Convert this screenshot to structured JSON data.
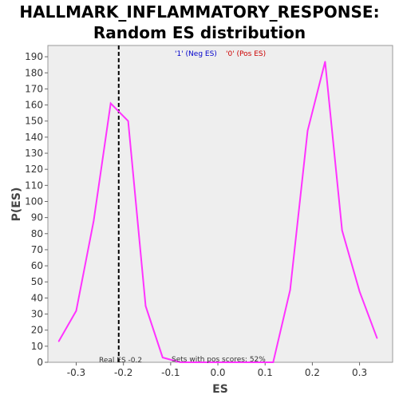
{
  "chart_data": {
    "type": "line",
    "title_line1": "HALLMARK_INFLAMMATORY_RESPONSE:",
    "title_line2": "Random ES distribution",
    "xlabel": "ES",
    "ylabel": "P(ES)",
    "xlim": [
      -0.36,
      0.37
    ],
    "ylim": [
      0,
      197
    ],
    "x_ticks": [
      -0.3,
      -0.2,
      -0.1,
      0.0,
      0.1,
      0.2,
      0.3
    ],
    "x_tick_labels": [
      "-0.3",
      "-0.2",
      "-0.1",
      "0.0",
      "0.1",
      "0.2",
      "0.3"
    ],
    "y_ticks": [
      0,
      10,
      20,
      30,
      40,
      50,
      60,
      70,
      80,
      90,
      100,
      110,
      120,
      130,
      140,
      150,
      160,
      170,
      180,
      190
    ],
    "grid": false,
    "series": [
      {
        "color": "#ff33ff",
        "x": [
          -0.337,
          -0.3,
          -0.263,
          -0.227,
          -0.19,
          -0.153,
          -0.117,
          -0.08,
          -0.043,
          0.0,
          0.043,
          0.08,
          0.117,
          0.153,
          0.19,
          0.227,
          0.263,
          0.3,
          0.337
        ],
        "y": [
          13,
          32,
          88,
          161,
          150,
          35,
          3,
          0,
          0,
          0,
          0,
          0,
          0,
          45,
          144,
          187,
          82,
          44,
          15
        ]
      }
    ],
    "real_es": -0.21,
    "real_es_label": "Real ES -0.2",
    "pos_scores_label": "Sets with pos scores: 52%",
    "legend": {
      "position": "top-center",
      "neg_label": "'1' (Neg ES)",
      "neg_color": "#0000cc",
      "pos_label": "'0' (Pos ES)",
      "pos_color": "#cc0000"
    }
  }
}
